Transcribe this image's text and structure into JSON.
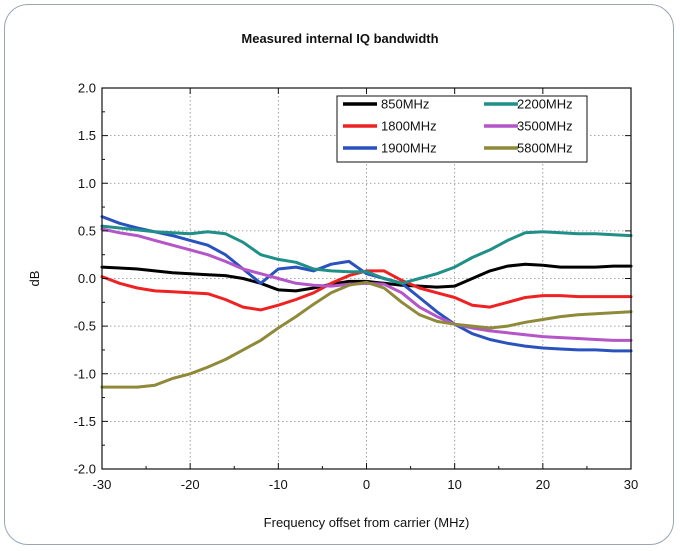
{
  "chart_data": {
    "type": "line",
    "title": "Measured internal IQ bandwidth",
    "xlabel": "Frequency offset from carrier (MHz)",
    "ylabel": "dB",
    "xlim": [
      -30,
      30
    ],
    "ylim": [
      -2.0,
      2.0
    ],
    "xticks": [
      "-30",
      "-20",
      "-10",
      "0",
      "10",
      "20",
      "30"
    ],
    "yticks": [
      "2.0",
      "1.5",
      "1.0",
      "0.5",
      "0.0",
      "-0.5",
      "-1.0",
      "-1.5",
      "-2.0"
    ],
    "grid": true,
    "legend_position": "top-right",
    "x": [
      -30,
      -28,
      -26,
      -24,
      -22,
      -20,
      -18,
      -16,
      -14,
      -12,
      -10,
      -8,
      -6,
      -4,
      -2,
      0,
      2,
      4,
      6,
      8,
      10,
      12,
      14,
      16,
      18,
      20,
      22,
      24,
      26,
      28,
      30
    ],
    "series": [
      {
        "name": "850MHz",
        "color": "#000000",
        "values": [
          0.12,
          0.11,
          0.1,
          0.08,
          0.06,
          0.05,
          0.04,
          0.03,
          0.0,
          -0.05,
          -0.12,
          -0.13,
          -0.1,
          -0.06,
          -0.03,
          -0.03,
          -0.05,
          -0.07,
          -0.08,
          -0.09,
          -0.08,
          0.0,
          0.08,
          0.13,
          0.15,
          0.14,
          0.12,
          0.12,
          0.12,
          0.13,
          0.13
        ]
      },
      {
        "name": "1800MHz",
        "color": "#ee2222",
        "values": [
          0.02,
          -0.05,
          -0.1,
          -0.13,
          -0.14,
          -0.15,
          -0.16,
          -0.22,
          -0.3,
          -0.33,
          -0.28,
          -0.22,
          -0.15,
          -0.05,
          0.03,
          0.08,
          0.08,
          -0.02,
          -0.1,
          -0.15,
          -0.2,
          -0.28,
          -0.3,
          -0.25,
          -0.2,
          -0.18,
          -0.18,
          -0.19,
          -0.19,
          -0.19,
          -0.19
        ]
      },
      {
        "name": "1900MHz",
        "color": "#2a52be",
        "values": [
          0.65,
          0.58,
          0.53,
          0.49,
          0.45,
          0.4,
          0.35,
          0.25,
          0.1,
          -0.05,
          0.1,
          0.12,
          0.08,
          0.15,
          0.18,
          0.05,
          0.0,
          -0.05,
          -0.2,
          -0.35,
          -0.48,
          -0.58,
          -0.64,
          -0.68,
          -0.71,
          -0.73,
          -0.74,
          -0.75,
          -0.75,
          -0.76,
          -0.76
        ]
      },
      {
        "name": "2200MHz",
        "color": "#1f8f87",
        "values": [
          0.55,
          0.53,
          0.51,
          0.49,
          0.48,
          0.47,
          0.49,
          0.47,
          0.38,
          0.25,
          0.2,
          0.17,
          0.1,
          0.08,
          0.07,
          0.07,
          0.0,
          -0.05,
          0.0,
          0.05,
          0.12,
          0.22,
          0.3,
          0.4,
          0.48,
          0.49,
          0.48,
          0.47,
          0.47,
          0.46,
          0.45
        ]
      },
      {
        "name": "3500MHz",
        "color": "#b455c8",
        "values": [
          0.52,
          0.48,
          0.45,
          0.4,
          0.35,
          0.3,
          0.25,
          0.18,
          0.1,
          0.05,
          0.0,
          -0.05,
          -0.07,
          -0.08,
          -0.06,
          -0.05,
          -0.06,
          -0.15,
          -0.3,
          -0.4,
          -0.48,
          -0.52,
          -0.55,
          -0.57,
          -0.59,
          -0.61,
          -0.62,
          -0.63,
          -0.64,
          -0.65,
          -0.65
        ]
      },
      {
        "name": "5800MHz",
        "color": "#8f8a3a",
        "values": [
          -1.14,
          -1.14,
          -1.14,
          -1.12,
          -1.05,
          -1.0,
          -0.93,
          -0.85,
          -0.75,
          -0.65,
          -0.52,
          -0.4,
          -0.27,
          -0.15,
          -0.07,
          -0.04,
          -0.1,
          -0.25,
          -0.38,
          -0.45,
          -0.48,
          -0.5,
          -0.52,
          -0.5,
          -0.46,
          -0.43,
          -0.4,
          -0.38,
          -0.37,
          -0.36,
          -0.35
        ]
      }
    ]
  }
}
